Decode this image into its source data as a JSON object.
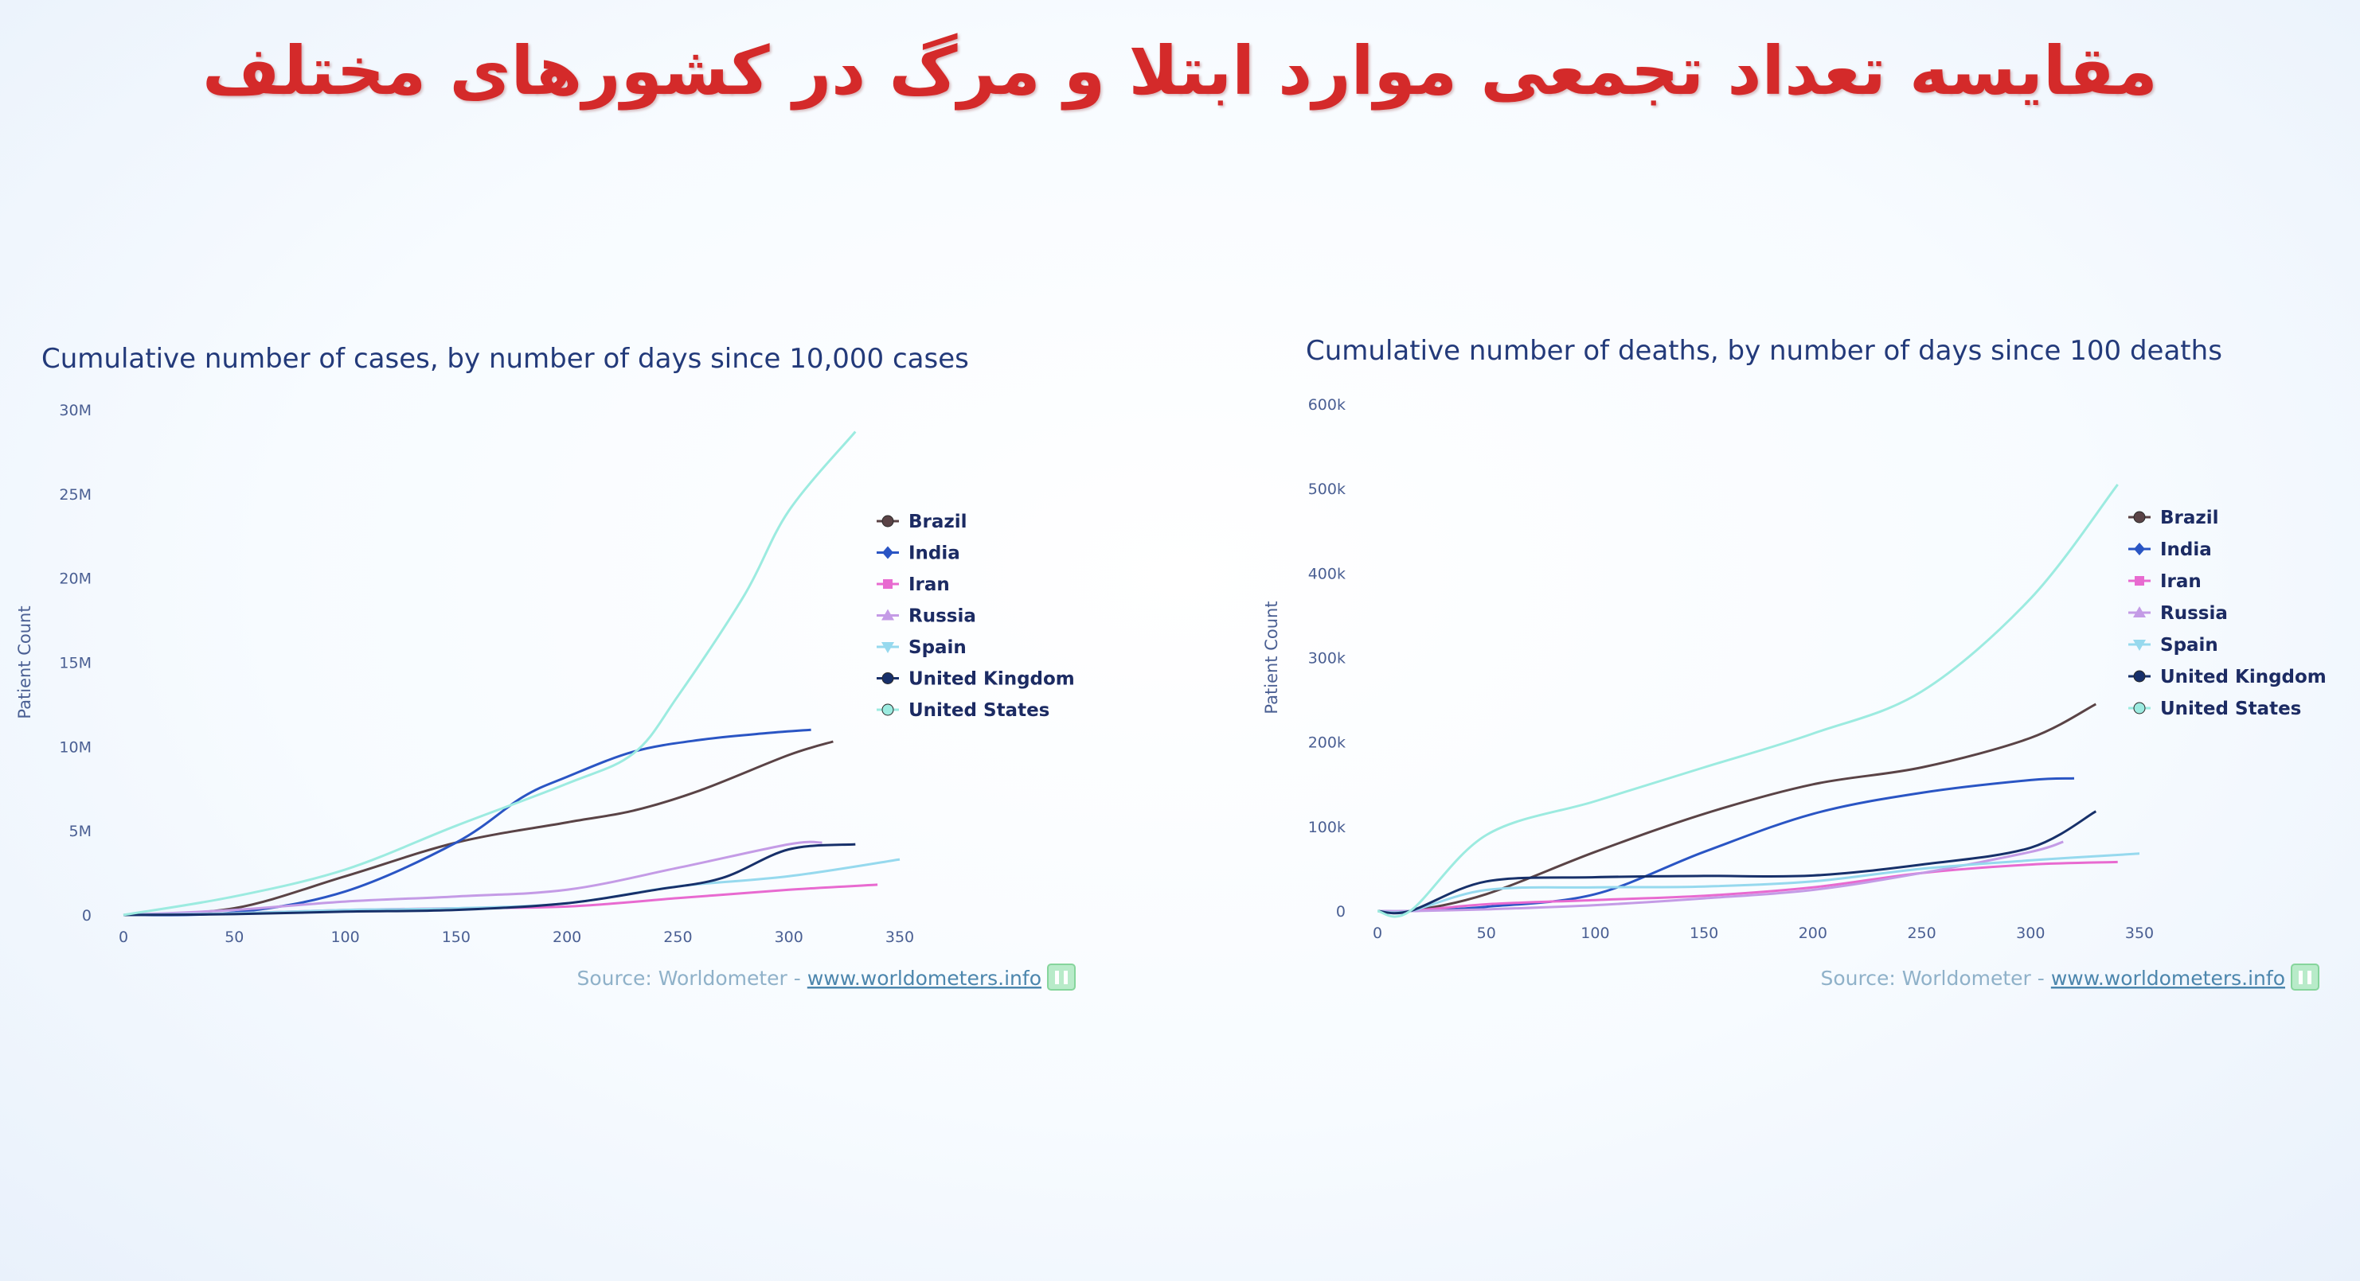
{
  "slide": {
    "title": "مقایسه تعداد تجمعی موارد ابتلا و مرگ در کشورهای مختلف"
  },
  "colors": {
    "Brazil": "#5a4346",
    "India": "#2a55c4",
    "Iran": "#e86ad0",
    "Russia": "#c49be6",
    "Spain": "#96d9ee",
    "United Kingdom": "#17306a",
    "United States": "#9cebe0"
  },
  "chart_data": [
    {
      "type": "line",
      "title": "Cumulative number of cases, by number of days since 10,000 cases",
      "ylabel": "Patient Count",
      "xlabel": "",
      "xlim": [
        0,
        350
      ],
      "ylim": [
        0,
        30000000
      ],
      "x_ticks": [
        "0",
        "50",
        "100",
        "150",
        "200",
        "250",
        "300",
        "350"
      ],
      "y_ticks": [
        "0",
        "5M",
        "10M",
        "15M",
        "20M",
        "25M",
        "30M"
      ],
      "legend_position": "right",
      "source_label": "Source: Worldometer -",
      "source_link": "www.worldometers.info",
      "series": [
        {
          "name": "Brazil",
          "points": [
            [
              0,
              0
            ],
            [
              50,
              400000
            ],
            [
              100,
              2300000
            ],
            [
              150,
              4300000
            ],
            [
              200,
              5500000
            ],
            [
              230,
              6200000
            ],
            [
              260,
              7400000
            ],
            [
              300,
              9500000
            ],
            [
              320,
              10300000
            ]
          ]
        },
        {
          "name": "India",
          "points": [
            [
              0,
              0
            ],
            [
              50,
              150000
            ],
            [
              100,
              1400000
            ],
            [
              150,
              4300000
            ],
            [
              180,
              7000000
            ],
            [
              200,
              8200000
            ],
            [
              230,
              9700000
            ],
            [
              260,
              10400000
            ],
            [
              290,
              10800000
            ],
            [
              310,
              11000000
            ]
          ]
        },
        {
          "name": "Iran",
          "points": [
            [
              0,
              0
            ],
            [
              50,
              100000
            ],
            [
              100,
              300000
            ],
            [
              150,
              400000
            ],
            [
              200,
              500000
            ],
            [
              250,
              1000000
            ],
            [
              300,
              1500000
            ],
            [
              340,
              1800000
            ]
          ]
        },
        {
          "name": "Russia",
          "points": [
            [
              0,
              0
            ],
            [
              50,
              300000
            ],
            [
              100,
              800000
            ],
            [
              150,
              1100000
            ],
            [
              200,
              1500000
            ],
            [
              250,
              2800000
            ],
            [
              300,
              4200000
            ],
            [
              315,
              4300000
            ]
          ]
        },
        {
          "name": "Spain",
          "points": [
            [
              0,
              0
            ],
            [
              50,
              100000
            ],
            [
              100,
              300000
            ],
            [
              150,
              400000
            ],
            [
              200,
              700000
            ],
            [
              250,
              1700000
            ],
            [
              300,
              2300000
            ],
            [
              350,
              3300000
            ]
          ]
        },
        {
          "name": "United Kingdom",
          "points": [
            [
              0,
              0
            ],
            [
              50,
              50000
            ],
            [
              100,
              200000
            ],
            [
              150,
              300000
            ],
            [
              200,
              700000
            ],
            [
              240,
              1500000
            ],
            [
              270,
              2200000
            ],
            [
              300,
              3900000
            ],
            [
              330,
              4200000
            ]
          ]
        },
        {
          "name": "United States",
          "points": [
            [
              0,
              0
            ],
            [
              50,
              1100000
            ],
            [
              100,
              2700000
            ],
            [
              150,
              5300000
            ],
            [
              200,
              7800000
            ],
            [
              230,
              9600000
            ],
            [
              250,
              13000000
            ],
            [
              280,
              19000000
            ],
            [
              300,
              24000000
            ],
            [
              330,
              28700000
            ]
          ]
        }
      ]
    },
    {
      "type": "line",
      "title": "Cumulative number of deaths, by number of days since 100 deaths",
      "ylabel": "Patient Count",
      "xlabel": "",
      "xlim": [
        0,
        350
      ],
      "ylim": [
        0,
        600000
      ],
      "x_ticks": [
        "0",
        "50",
        "100",
        "150",
        "200",
        "250",
        "300",
        "350"
      ],
      "y_ticks": [
        "0",
        "100k",
        "200k",
        "300k",
        "400k",
        "500k",
        "600k"
      ],
      "legend_position": "right",
      "source_label": "Source: Worldometer -",
      "source_link": "www.worldometers.info",
      "series": [
        {
          "name": "Brazil",
          "points": [
            [
              0,
              0
            ],
            [
              15,
              0
            ],
            [
              50,
              20000
            ],
            [
              100,
              70000
            ],
            [
              150,
              115000
            ],
            [
              200,
              150000
            ],
            [
              250,
              170000
            ],
            [
              300,
              205000
            ],
            [
              330,
              245000
            ]
          ]
        },
        {
          "name": "India",
          "points": [
            [
              0,
              0
            ],
            [
              15,
              0
            ],
            [
              50,
              5000
            ],
            [
              100,
              20000
            ],
            [
              150,
              70000
            ],
            [
              200,
              115000
            ],
            [
              250,
              140000
            ],
            [
              300,
              155000
            ],
            [
              320,
              157000
            ]
          ]
        },
        {
          "name": "Iran",
          "points": [
            [
              0,
              0
            ],
            [
              15,
              0
            ],
            [
              50,
              8000
            ],
            [
              100,
              13000
            ],
            [
              150,
              18000
            ],
            [
              200,
              28000
            ],
            [
              250,
              45000
            ],
            [
              300,
              55000
            ],
            [
              340,
              58000
            ]
          ]
        },
        {
          "name": "Russia",
          "points": [
            [
              0,
              0
            ],
            [
              15,
              0
            ],
            [
              50,
              2000
            ],
            [
              100,
              7000
            ],
            [
              150,
              15000
            ],
            [
              200,
              25000
            ],
            [
              250,
              45000
            ],
            [
              300,
              70000
            ],
            [
              315,
              82000
            ]
          ]
        },
        {
          "name": "Spain",
          "points": [
            [
              0,
              0
            ],
            [
              15,
              0
            ],
            [
              50,
              25000
            ],
            [
              100,
              28000
            ],
            [
              150,
              29000
            ],
            [
              200,
              35000
            ],
            [
              250,
              50000
            ],
            [
              300,
              60000
            ],
            [
              350,
              68000
            ]
          ]
        },
        {
          "name": "United Kingdom",
          "points": [
            [
              0,
              0
            ],
            [
              15,
              0
            ],
            [
              50,
              35000
            ],
            [
              100,
              40000
            ],
            [
              150,
              41500
            ],
            [
              200,
              42000
            ],
            [
              250,
              55000
            ],
            [
              300,
              75000
            ],
            [
              330,
              118000
            ]
          ]
        },
        {
          "name": "United States",
          "points": [
            [
              0,
              0
            ],
            [
              15,
              0
            ],
            [
              50,
              90000
            ],
            [
              100,
              130000
            ],
            [
              150,
              170000
            ],
            [
              200,
              210000
            ],
            [
              250,
              260000
            ],
            [
              300,
              370000
            ],
            [
              340,
              505000
            ]
          ]
        }
      ]
    }
  ]
}
